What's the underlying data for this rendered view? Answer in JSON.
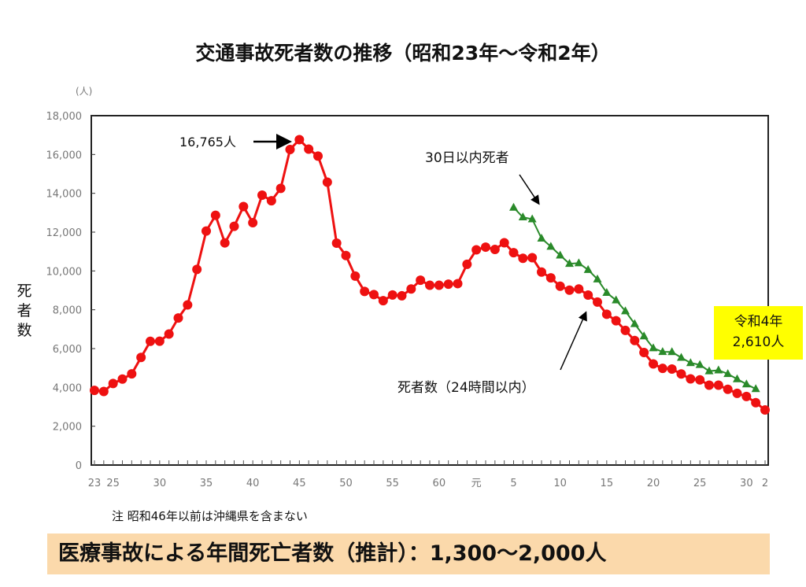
{
  "chart_data": {
    "type": "line",
    "title": "交通事故死者数の推移（昭和23年～令和2年）",
    "ylabel": "死者数",
    "yunit": "(人)",
    "ylim": [
      0,
      18000
    ],
    "yticks": [
      "0",
      "2,000",
      "4,000",
      "6,000",
      "8,000",
      "10,000",
      "12,000",
      "14,000",
      "16,000",
      "18,000"
    ],
    "grid": false,
    "x_years": [
      1948,
      1949,
      1950,
      1951,
      1952,
      1953,
      1954,
      1955,
      1956,
      1957,
      1958,
      1959,
      1960,
      1961,
      1962,
      1963,
      1964,
      1965,
      1966,
      1967,
      1968,
      1969,
      1970,
      1971,
      1972,
      1973,
      1974,
      1975,
      1976,
      1977,
      1978,
      1979,
      1980,
      1981,
      1982,
      1983,
      1984,
      1985,
      1986,
      1987,
      1988,
      1989,
      1990,
      1991,
      1992,
      1993,
      1994,
      1995,
      1996,
      1997,
      1998,
      1999,
      2000,
      2001,
      2002,
      2003,
      2004,
      2005,
      2006,
      2007,
      2008,
      2009,
      2010,
      2011,
      2012,
      2013,
      2014,
      2015,
      2016,
      2017,
      2018,
      2019,
      2020
    ],
    "xtick_labels": [
      {
        "year": 1948,
        "label": "23"
      },
      {
        "year": 1950,
        "label": "25"
      },
      {
        "year": 1955,
        "label": "30"
      },
      {
        "year": 1960,
        "label": "35"
      },
      {
        "year": 1965,
        "label": "40"
      },
      {
        "year": 1970,
        "label": "45"
      },
      {
        "year": 1975,
        "label": "50"
      },
      {
        "year": 1980,
        "label": "55"
      },
      {
        "year": 1985,
        "label": "60"
      },
      {
        "year": 1989,
        "label": "元"
      },
      {
        "year": 1993,
        "label": "5"
      },
      {
        "year": 1998,
        "label": "10"
      },
      {
        "year": 2003,
        "label": "15"
      },
      {
        "year": 2008,
        "label": "20"
      },
      {
        "year": 2013,
        "label": "25"
      },
      {
        "year": 2018,
        "label": "30"
      },
      {
        "year": 2020,
        "label": "2"
      }
    ],
    "series": [
      {
        "name": "死者数（24時間以内）",
        "color": "#ee1111",
        "start_year": 1948,
        "values": [
          3848,
          3790,
          4202,
          4429,
          4696,
          5544,
          6374,
          6379,
          6751,
          7575,
          8248,
          10079,
          12055,
          12865,
          11445,
          12301,
          13318,
          12484,
          13904,
          13618,
          14256,
          16257,
          16765,
          16278,
          15918,
          14574,
          11432,
          10792,
          9734,
          8945,
          8783,
          8466,
          8760,
          8719,
          9073,
          9520,
          9262,
          9261,
          9317,
          9347,
          10344,
          11086,
          11227,
          11109,
          11452,
          10942,
          10653,
          10684,
          9943,
          9642,
          9214,
          9012,
          9073,
          8757,
          8396,
          7768,
          7436,
          6937,
          6415,
          5796,
          5209,
          4979,
          4948,
          4691,
          4438,
          4388,
          4113,
          4117,
          3904,
          3694,
          3532,
          3215,
          2839
        ]
      },
      {
        "name": "30日以内死者",
        "color": "#2a8a2a",
        "start_year": 1993,
        "values": [
          13269,
          12768,
          12670,
          11674,
          11254,
          10805,
          10372,
          10403,
          10060,
          9575,
          8877,
          8492,
          7931,
          7272,
          6639,
          6023,
          5831,
          5828,
          5535,
          5261,
          5165,
          4838,
          4885,
          4698,
          4431,
          4166,
          3920
        ]
      }
    ],
    "annotations": {
      "peak": "16,765人",
      "thirty_day": "30日以内死者",
      "twenty_four": "死者数（24時間以内）",
      "reiwa4_line1": "令和4年",
      "reiwa4_line2": "2,610人"
    }
  },
  "note": "注 昭和46年以前は沖縄県を含まない",
  "banner": "医療事故による年間死亡者数（推計）：1,300～2,000人",
  "colors": {
    "banner_bg": "#fbd9ab",
    "highlight_bg": "#ffff00"
  }
}
